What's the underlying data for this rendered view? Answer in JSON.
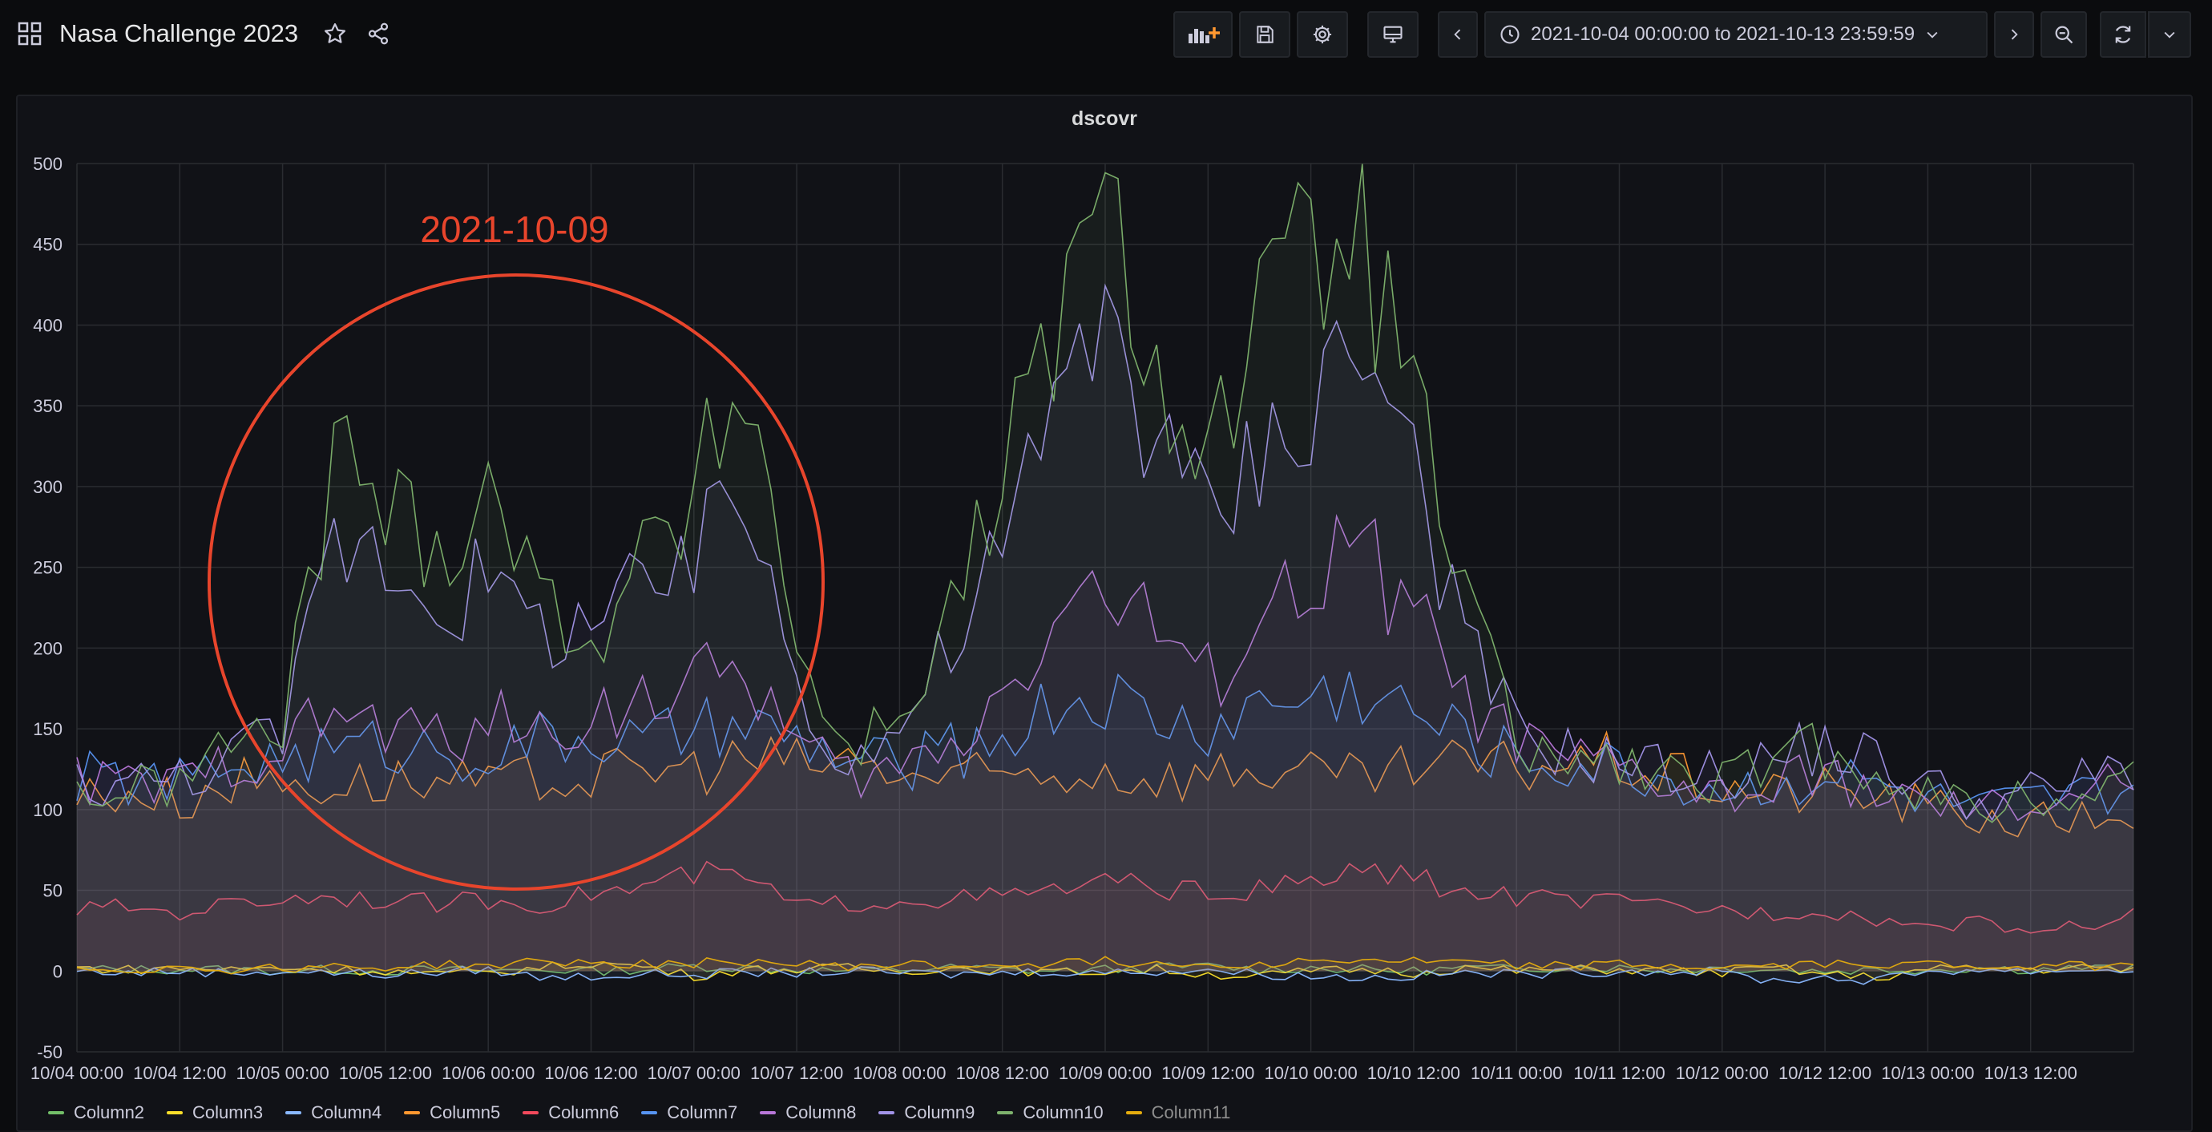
{
  "header": {
    "title": "Nasa Challenge 2023",
    "time_range": "2021-10-04 00:00:00 to 2021-10-13 23:59:59"
  },
  "icons": {
    "dashboards": "grid-icon",
    "star": "star-icon",
    "share": "share-icon",
    "add_panel": "add-panel-icon",
    "save": "save-icon",
    "settings": "gear-icon",
    "cycle_view": "monitor-icon",
    "time_back": "chevron-left-icon",
    "clock": "clock-icon",
    "time_dropdown": "chevron-down-icon",
    "time_forward": "chevron-right-icon",
    "zoom_out": "zoom-out-icon",
    "refresh": "refresh-icon",
    "refresh_dropdown": "chevron-down-icon"
  },
  "panel": {
    "title": "dscovr",
    "annotation": {
      "text": "2021-10-09",
      "color": "#e8452c"
    }
  },
  "chart_data": {
    "type": "line",
    "title": "dscovr",
    "xlabel": "",
    "ylabel": "",
    "x_range": [
      "2021-10-04 00:00",
      "2021-10-14 00:00"
    ],
    "ylim": [
      -50,
      500
    ],
    "y_ticks": [
      -50,
      0,
      50,
      100,
      150,
      200,
      250,
      300,
      350,
      400,
      450,
      500
    ],
    "x_tick_labels": [
      "10/04 00:00",
      "10/04 12:00",
      "10/05 00:00",
      "10/05 12:00",
      "10/06 00:00",
      "10/06 12:00",
      "10/07 00:00",
      "10/07 12:00",
      "10/08 00:00",
      "10/08 12:00",
      "10/09 00:00",
      "10/09 12:00",
      "10/10 00:00",
      "10/10 12:00",
      "10/11 00:00",
      "10/11 12:00",
      "10/12 00:00",
      "10/12 12:00",
      "10/13 00:00",
      "10/13 12:00"
    ],
    "grid": true,
    "legend_position": "bottom",
    "x_hours": [
      0,
      6,
      12,
      18,
      24,
      30,
      36,
      42,
      48,
      54,
      60,
      66,
      72,
      78,
      84,
      90,
      96,
      102,
      108,
      114,
      120,
      126,
      132,
      138,
      144,
      150,
      156,
      162,
      168,
      174,
      180,
      186,
      192,
      198,
      204,
      210,
      216,
      222,
      228,
      234,
      240
    ],
    "series": [
      {
        "name": "Column2",
        "color": "#73bf69",
        "values": [
          1,
          1,
          1,
          1,
          0,
          1,
          0,
          1,
          0,
          1,
          0,
          1,
          3,
          2,
          1,
          0,
          1,
          2,
          1,
          0,
          1,
          2,
          3,
          1,
          2,
          1,
          0,
          2,
          1,
          3,
          2,
          1,
          2,
          1,
          0,
          1,
          1,
          2,
          1,
          2,
          1
        ]
      },
      {
        "name": "Column3",
        "color": "#fade2a",
        "values": [
          2,
          1,
          2,
          1,
          2,
          1,
          0,
          -2,
          -1,
          2,
          5,
          3,
          -3,
          1,
          1,
          2,
          0,
          2,
          1,
          -1,
          0,
          1,
          -2,
          -3,
          0,
          1,
          -1,
          2,
          0,
          1,
          1,
          0,
          -1,
          2,
          -2,
          -4,
          1,
          2,
          1,
          2,
          1
        ]
      },
      {
        "name": "Column4",
        "color": "#8ab8ff",
        "values": [
          0,
          -1,
          0,
          -1,
          0,
          -1,
          -2,
          -1,
          1,
          -4,
          -3,
          -2,
          -2,
          -1,
          -1,
          0,
          -1,
          -2,
          -1,
          0,
          -1,
          0,
          1,
          -2,
          -3,
          -4,
          -3,
          -1,
          -2,
          -1,
          0,
          0,
          -1,
          -6,
          -4,
          -6,
          0,
          1,
          0,
          1,
          0
        ]
      },
      {
        "name": "Column5",
        "color": "#ff9830",
        "values": [
          108,
          112,
          105,
          118,
          118,
          115,
          118,
          116,
          114,
          118,
          120,
          124,
          126,
          131,
          128,
          130,
          122,
          118,
          120,
          122,
          124,
          120,
          122,
          126,
          120,
          118,
          124,
          128,
          126,
          131,
          130,
          120,
          115,
          110,
          112,
          108,
          102,
          96,
          92,
          95,
          98
        ]
      },
      {
        "name": "Column6",
        "color": "#f2495c",
        "values": [
          38,
          40,
          36,
          42,
          45,
          47,
          44,
          42,
          44,
          41,
          48,
          52,
          60,
          58,
          40,
          42,
          44,
          45,
          46,
          50,
          55,
          52,
          48,
          50,
          55,
          62,
          58,
          48,
          46,
          44,
          42,
          40,
          38,
          36,
          38,
          32,
          28,
          30,
          25,
          28,
          35
        ]
      },
      {
        "name": "Column7",
        "color": "#5794f2",
        "values": [
          120,
          118,
          116,
          128,
          132,
          136,
          140,
          138,
          135,
          142,
          145,
          140,
          148,
          150,
          142,
          130,
          128,
          135,
          145,
          165,
          170,
          155,
          150,
          165,
          170,
          175,
          160,
          145,
          132,
          128,
          126,
          118,
          112,
          116,
          122,
          115,
          106,
          100,
          104,
          108,
          112
        ]
      },
      {
        "name": "Column8",
        "color": "#b877d9",
        "values": [
          118,
          116,
          114,
          130,
          140,
          160,
          150,
          145,
          155,
          145,
          160,
          170,
          175,
          190,
          140,
          120,
          125,
          140,
          175,
          220,
          240,
          210,
          180,
          220,
          240,
          260,
          220,
          170,
          140,
          130,
          125,
          115,
          108,
          110,
          125,
          110,
          100,
          98,
          102,
          110,
          118
        ]
      },
      {
        "name": "Column9",
        "color": "#a293e8",
        "values": [
          118,
          116,
          120,
          135,
          145,
          270,
          260,
          230,
          240,
          210,
          220,
          230,
          250,
          300,
          180,
          130,
          150,
          200,
          260,
          340,
          420,
          330,
          280,
          320,
          360,
          390,
          320,
          200,
          150,
          135,
          130,
          125,
          120,
          132,
          140,
          130,
          115,
          105,
          110,
          118,
          128
        ]
      },
      {
        "name": "Column10",
        "color": "#7eb26d",
        "values": [
          112,
          110,
          118,
          140,
          150,
          320,
          290,
          260,
          310,
          230,
          210,
          250,
          290,
          380,
          200,
          135,
          160,
          220,
          300,
          400,
          460,
          380,
          320,
          400,
          440,
          450,
          350,
          230,
          140,
          130,
          128,
          120,
          115,
          128,
          138,
          125,
          110,
          100,
          105,
          112,
          120
        ]
      },
      {
        "name": "Column11",
        "color": "#e5ac0e",
        "values": [
          2,
          1,
          2,
          1,
          2,
          3,
          2,
          4,
          3,
          6,
          5,
          4,
          5,
          6,
          4,
          3,
          4,
          3,
          4,
          5,
          6,
          5,
          4,
          5,
          6,
          7,
          6,
          5,
          4,
          3,
          4,
          3,
          2,
          3,
          4,
          5,
          4,
          3,
          4,
          3,
          4
        ]
      }
    ]
  }
}
